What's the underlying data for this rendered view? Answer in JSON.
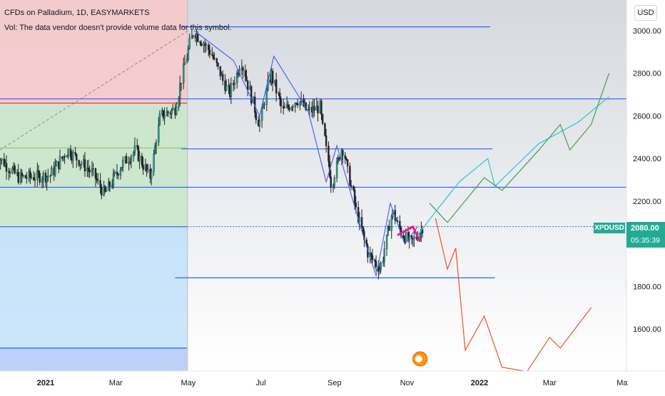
{
  "header": {
    "title": "CFDs on Palladium, 1D, EASYMARKETS",
    "volume_note": "Vol: The data vendor doesn't provide volume data for this symbol."
  },
  "currency_button": "USD",
  "last_price": {
    "symbol": "XPDUSD",
    "price": "2080.00",
    "countdown": "05:35:39",
    "color": "#22ab94"
  },
  "colors": {
    "hline_blue": "#2962ff",
    "red_line": "#f23645",
    "pink_pattern": "#e91e8c",
    "projection_cyan": "#26c6da",
    "projection_green": "#43a047",
    "projection_red": "#f4511e",
    "zone_red": "#f6c9cb",
    "zone_green": "#c8e6c9",
    "zone_blue": "#bbdefb",
    "zone_grey": "#e0e0e0"
  },
  "chart_data": {
    "type": "candlestick",
    "x_ticks": [
      {
        "date": "2021-01-01",
        "label": "2021",
        "bold": true
      },
      {
        "date": "2021-03-01",
        "label": "Mar"
      },
      {
        "date": "2021-05-01",
        "label": "May"
      },
      {
        "date": "2021-07-01",
        "label": "Jul"
      },
      {
        "date": "2021-09-01",
        "label": "Sep"
      },
      {
        "date": "2021-11-01",
        "label": "Nov"
      },
      {
        "date": "2022-01-01",
        "label": "2022",
        "bold": true
      },
      {
        "date": "2022-03-01",
        "label": "Mar"
      },
      {
        "date": "2022-05-01",
        "label": "Ma"
      }
    ],
    "y_ticks": [
      "3000.00",
      "2800.00",
      "2600.00",
      "2400.00",
      "2200.00",
      "1800.00",
      "1600.00"
    ],
    "ylim": [
      1415,
      3040
    ],
    "price_path": [
      [
        "2020-11-20",
        2420
      ],
      [
        "2020-12-10",
        2310
      ],
      [
        "2021-01-05",
        2320
      ],
      [
        "2021-01-20",
        2440
      ],
      [
        "2021-02-10",
        2330
      ],
      [
        "2021-02-20",
        2230
      ],
      [
        "2021-03-05",
        2360
      ],
      [
        "2021-03-18",
        2440
      ],
      [
        "2021-03-30",
        2310
      ],
      [
        "2021-04-08",
        2600
      ],
      [
        "2021-04-20",
        2630
      ],
      [
        "2021-04-30",
        2880
      ],
      [
        "2021-05-06",
        3000
      ],
      [
        "2021-05-20",
        2900
      ],
      [
        "2021-06-05",
        2700
      ],
      [
        "2021-06-15",
        2860
      ],
      [
        "2021-06-30",
        2560
      ],
      [
        "2021-07-10",
        2800
      ],
      [
        "2021-07-20",
        2620
      ],
      [
        "2021-08-01",
        2680
      ],
      [
        "2021-08-10",
        2620
      ],
      [
        "2021-08-20",
        2640
      ],
      [
        "2021-08-30",
        2280
      ],
      [
        "2021-09-08",
        2460
      ],
      [
        "2021-09-20",
        2150
      ],
      [
        "2021-09-30",
        1950
      ],
      [
        "2021-10-10",
        1880
      ],
      [
        "2021-10-20",
        2150
      ],
      [
        "2021-10-28",
        2050
      ],
      [
        "2021-11-05",
        2000
      ],
      [
        "2021-11-15",
        2080
      ]
    ],
    "horizontal_levels": [
      {
        "price": 3018,
        "from": "2021-04-25",
        "to": "2022-01-10"
      },
      {
        "price": 2680,
        "from": "2020-11-01",
        "to": "2022-05-20"
      },
      {
        "price": 2660,
        "from": "2020-11-01",
        "to": "2021-04-30",
        "color": "red"
      },
      {
        "price": 2445,
        "from": "2021-04-25",
        "to": "2022-01-12"
      },
      {
        "price": 2265,
        "from": "2020-11-01",
        "to": "2022-05-20"
      },
      {
        "price": 2080,
        "from": "2020-11-01",
        "to": "2021-04-30",
        "dotted_to": "2022-05-20"
      },
      {
        "price": 1840,
        "from": "2021-04-20",
        "to": "2022-01-14"
      },
      {
        "price": 1510,
        "from": "2020-11-01",
        "to": "2021-04-30"
      }
    ],
    "zigzag": [
      [
        "2021-05-06",
        3000
      ],
      [
        "2021-06-08",
        2860
      ],
      [
        "2021-06-30",
        2600
      ],
      [
        "2021-07-12",
        2880
      ],
      [
        "2021-08-10",
        2620
      ],
      [
        "2021-08-25",
        2290
      ],
      [
        "2021-09-03",
        2460
      ],
      [
        "2021-09-25",
        2040
      ],
      [
        "2021-10-06",
        1850
      ],
      [
        "2021-10-18",
        2190
      ],
      [
        "2021-10-30",
        2000
      ],
      [
        "2021-11-10",
        2080
      ]
    ],
    "projection_cyan": [
      [
        "2021-11-10",
        2040
      ],
      [
        "2021-11-25",
        2150
      ],
      [
        "2021-12-15",
        2290
      ],
      [
        "2022-01-08",
        2400
      ],
      [
        "2022-01-14",
        2270
      ],
      [
        "2022-02-20",
        2470
      ],
      [
        "2022-03-25",
        2570
      ],
      [
        "2022-04-20",
        2690
      ]
    ],
    "projection_green": [
      [
        "2021-11-20",
        2190
      ],
      [
        "2021-12-05",
        2100
      ],
      [
        "2022-01-05",
        2310
      ],
      [
        "2022-01-20",
        2250
      ],
      [
        "2022-02-20",
        2440
      ],
      [
        "2022-03-10",
        2560
      ],
      [
        "2022-03-18",
        2440
      ],
      [
        "2022-04-05",
        2560
      ],
      [
        "2022-04-20",
        2800
      ]
    ],
    "projection_red": [
      [
        "2021-11-25",
        2120
      ],
      [
        "2021-12-05",
        1880
      ],
      [
        "2021-12-12",
        1980
      ],
      [
        "2021-12-20",
        1500
      ],
      [
        "2022-01-05",
        1660
      ],
      [
        "2022-01-20",
        1420
      ],
      [
        "2022-02-10",
        1400
      ],
      [
        "2022-03-01",
        1560
      ],
      [
        "2022-03-10",
        1510
      ],
      [
        "2022-04-05",
        1700
      ]
    ],
    "pink_pattern": [
      [
        "2021-10-24",
        2040
      ],
      [
        "2021-11-06",
        2080
      ],
      [
        "2021-11-12",
        2010
      ]
    ]
  }
}
